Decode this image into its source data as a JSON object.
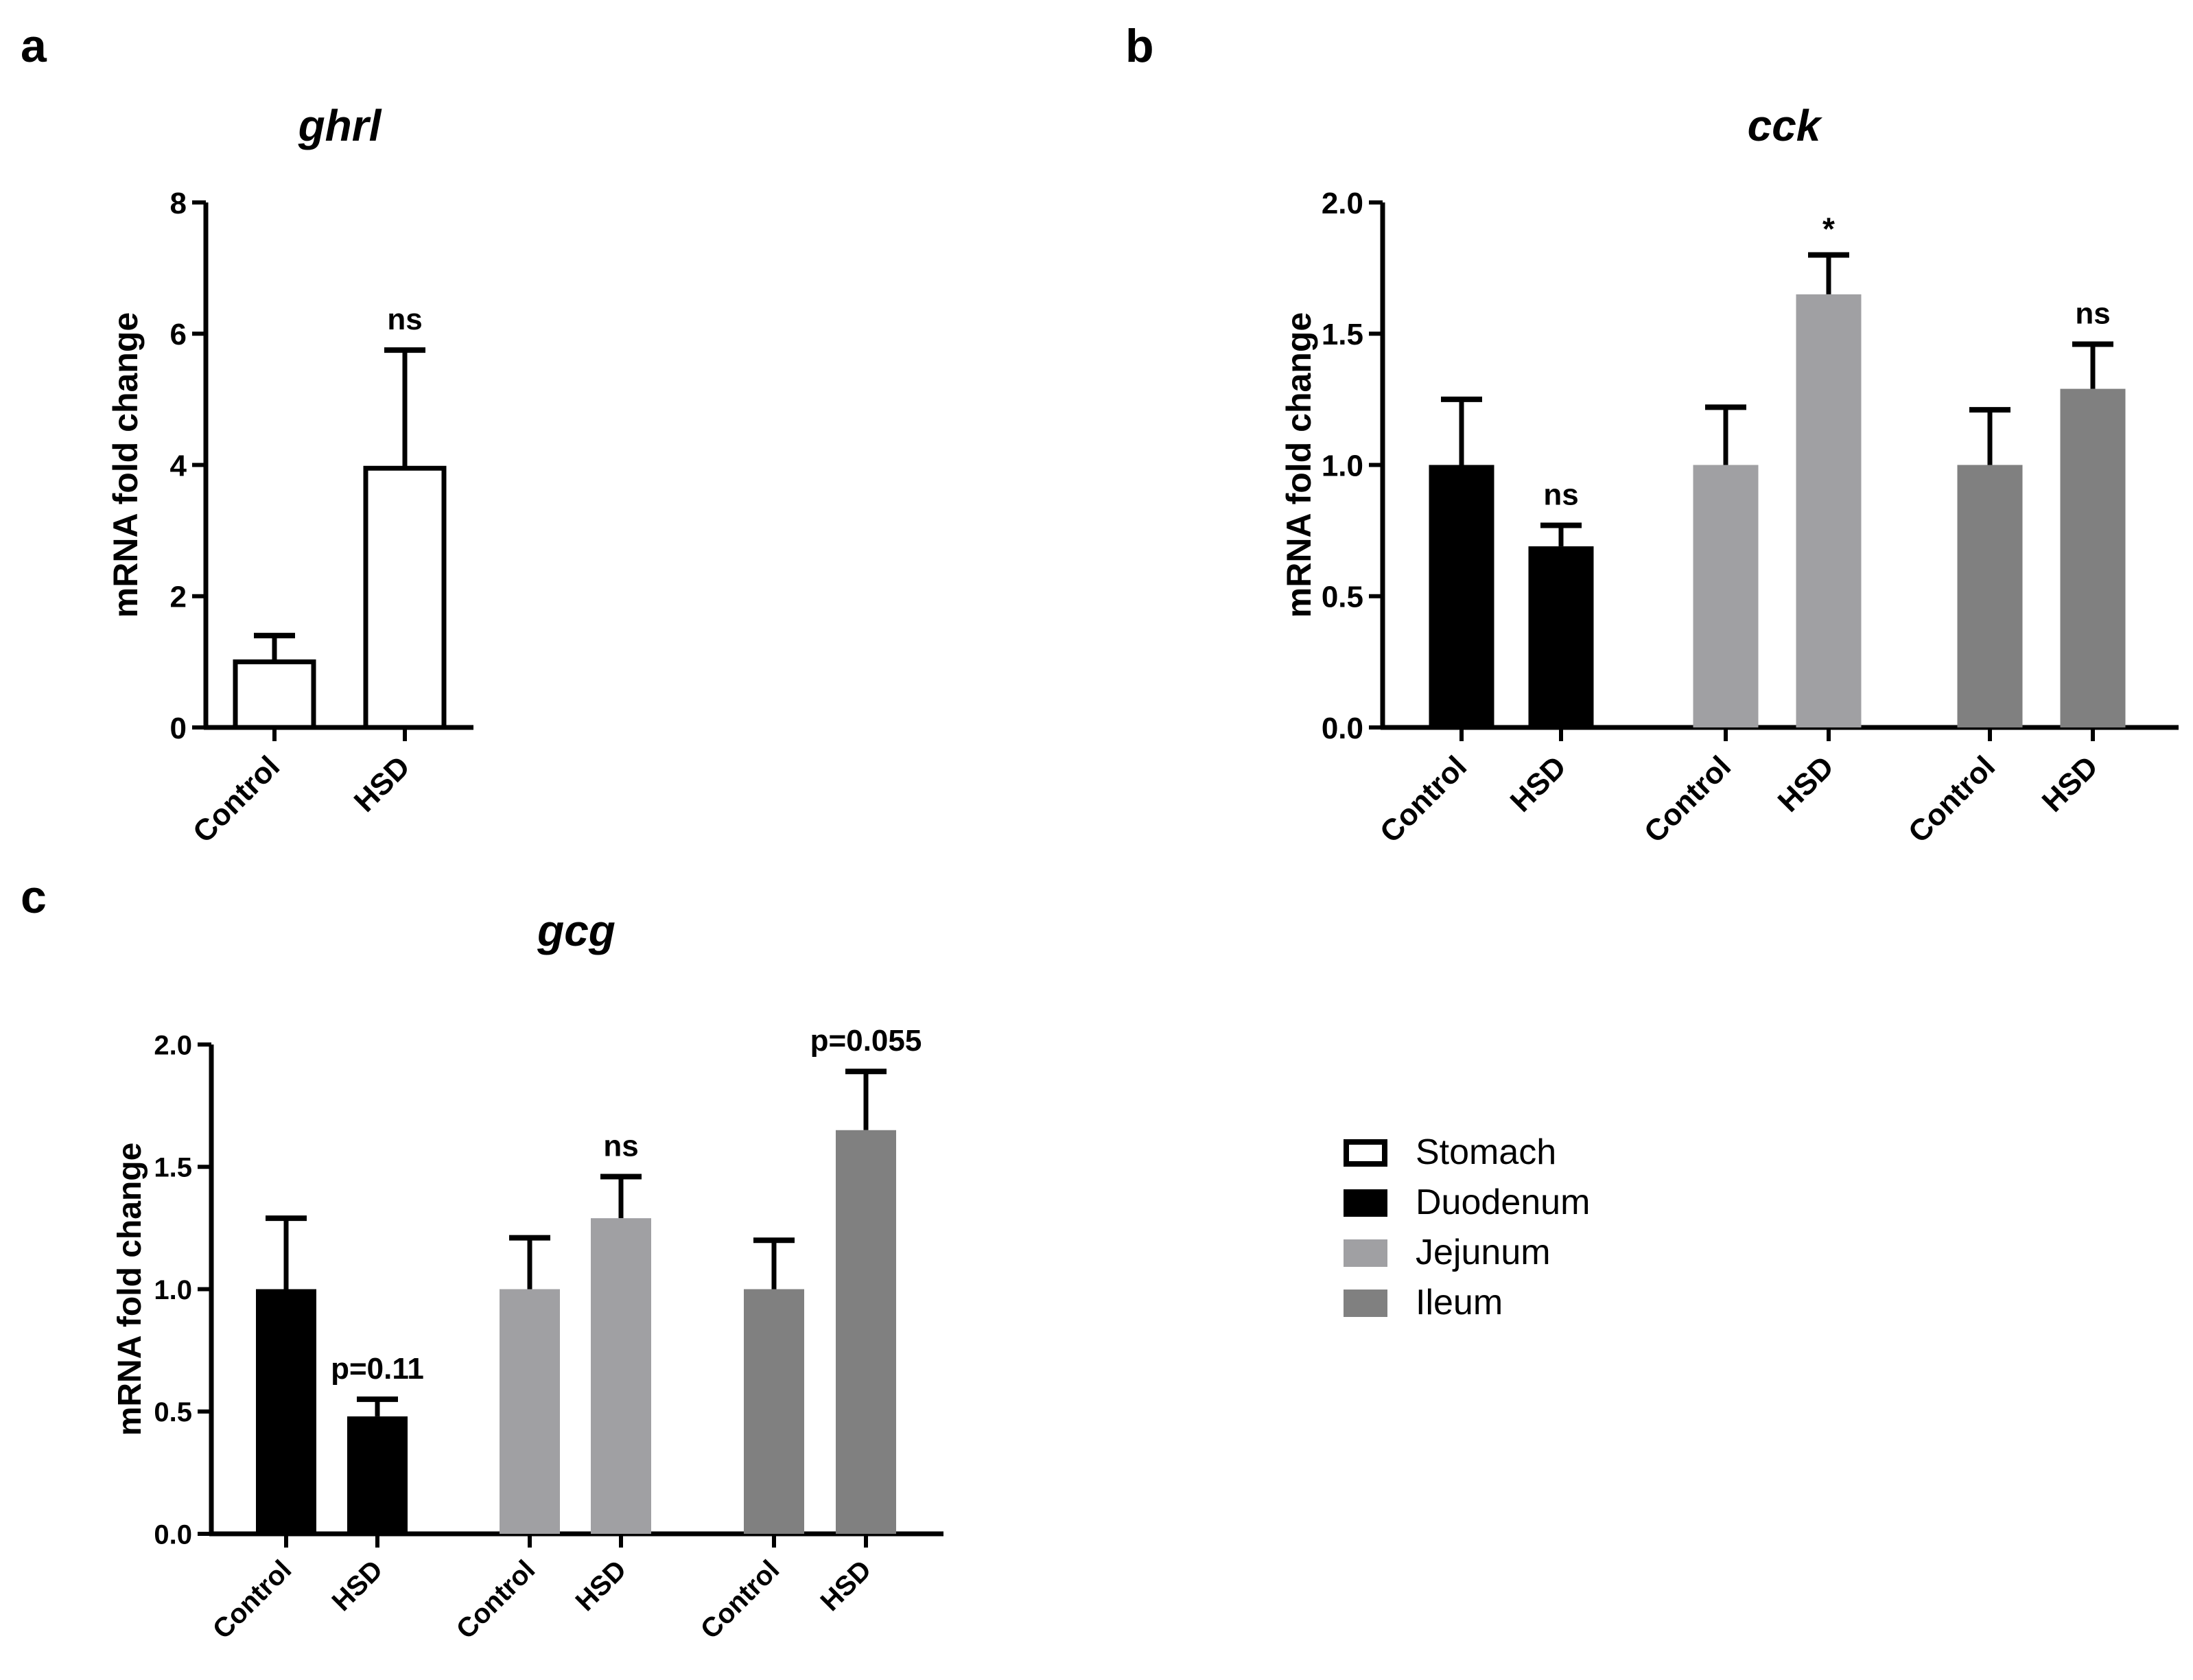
{
  "panel_letters": {
    "a": "a",
    "b": "b",
    "c": "c"
  },
  "colors": {
    "Stomach": "#ffffff",
    "Duodenum": "#000000",
    "Jejunum": "#a0a0a3",
    "Ileum": "#808080"
  },
  "legend": {
    "entries": [
      {
        "label": "Stomach",
        "fill": "#ffffff",
        "stroke": "#000000"
      },
      {
        "label": "Duodenum",
        "fill": "#000000",
        "stroke": "#000000"
      },
      {
        "label": "Jejunum",
        "fill": "#a0a0a3",
        "stroke": "#a0a0a3"
      },
      {
        "label": "Ileum",
        "fill": "#808080",
        "stroke": "#808080"
      }
    ]
  },
  "chart_data": [
    {
      "panel": "a",
      "type": "bar",
      "title": "ghrl",
      "xlabel": "",
      "ylabel": "mRNA fold change",
      "ylim": [
        0,
        8
      ],
      "yticks": [
        0,
        2,
        4,
        6,
        8
      ],
      "ytick_labels": [
        "0",
        "2",
        "4",
        "6",
        "8"
      ],
      "categories": [
        "Control",
        "HSD"
      ],
      "values": [
        1.0,
        3.95
      ],
      "errors": [
        0.4,
        1.8
      ],
      "tissue": [
        "Stomach",
        "Stomach"
      ],
      "annotations": [
        "",
        "ns"
      ]
    },
    {
      "panel": "b",
      "type": "bar",
      "title": "cck",
      "xlabel": "",
      "ylabel": "mRNA fold change",
      "ylim": [
        0,
        2.0
      ],
      "yticks": [
        0,
        0.5,
        1.0,
        1.5,
        2.0
      ],
      "ytick_labels": [
        "0.0",
        "0.5",
        "1.0",
        "1.5",
        "2.0"
      ],
      "categories": [
        "Control",
        "HSD",
        "Control",
        "HSD",
        "Control",
        "HSD"
      ],
      "values": [
        1.0,
        0.69,
        1.0,
        1.65,
        1.0,
        1.29
      ],
      "errors": [
        0.25,
        0.08,
        0.22,
        0.15,
        0.21,
        0.17
      ],
      "tissue": [
        "Duodenum",
        "Duodenum",
        "Jejunum",
        "Jejunum",
        "Ileum",
        "Ileum"
      ],
      "annotations": [
        "",
        "ns",
        "",
        "*",
        "",
        "ns"
      ]
    },
    {
      "panel": "c",
      "type": "bar",
      "title": "gcg",
      "xlabel": "",
      "ylabel": "mRNA fold change",
      "ylim": [
        0,
        2.0
      ],
      "yticks": [
        0,
        0.5,
        1.0,
        1.5,
        2.0
      ],
      "ytick_labels": [
        "0.0",
        "0.5",
        "1.0",
        "1.5",
        "2.0"
      ],
      "categories": [
        "Control",
        "HSD",
        "Control",
        "HSD",
        "Control",
        "HSD"
      ],
      "values": [
        1.0,
        0.48,
        1.0,
        1.29,
        1.0,
        1.65
      ],
      "errors": [
        0.29,
        0.07,
        0.21,
        0.17,
        0.2,
        0.24
      ],
      "tissue": [
        "Duodenum",
        "Duodenum",
        "Jejunum",
        "Jejunum",
        "Ileum",
        "Ileum"
      ],
      "annotations": [
        "",
        "p=0.11",
        "",
        "ns",
        "",
        "p=0.055"
      ]
    }
  ]
}
